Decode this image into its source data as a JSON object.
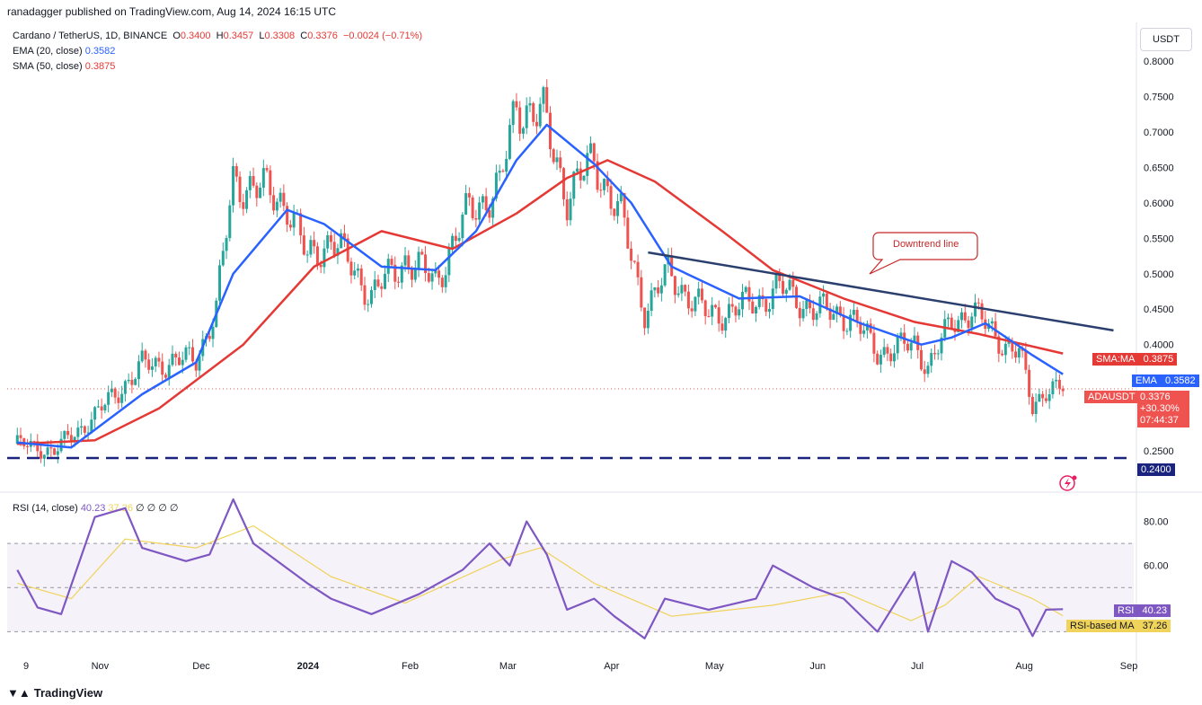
{
  "publisher_line": "ranadagger published on TradingView.com, Aug 14, 2024 16:15 UTC",
  "legend": {
    "symbol": "Cardano / TetherUS, 1D, BINANCE",
    "ohlc": {
      "O": "0.3400",
      "H": "0.3457",
      "L": "0.3308",
      "C": "0.3376",
      "change": "−0.0024 (−0.71%)"
    },
    "ema_label": "EMA (20, close)",
    "ema_value": "0.3582",
    "sma_label": "SMA (50, close)",
    "sma_value": "0.3875"
  },
  "currency": "USDT",
  "rsi_legend": {
    "label": "RSI (14, close)",
    "rsi_value": "40.23",
    "ma_value": "37.26",
    "extra": "∅ ∅ ∅ ∅"
  },
  "annotation": "Downtrend line",
  "tags": {
    "sma_label": "SMA:MA",
    "sma_value": "0.3875",
    "ema_label": "EMA",
    "ema_value": "0.3582",
    "price_label": "ADAUSDT",
    "price_value": "0.3376",
    "price_change": "+30.30%",
    "countdown": "07:44:37",
    "support_value": "0.2400",
    "rsi_label": "RSI",
    "rsi_value": "40.23",
    "rsi_ma_label": "RSI-based MA",
    "rsi_ma_value": "37.26"
  },
  "brand": "TradingView",
  "colors": {
    "up": "#26a69a",
    "down": "#ef5350",
    "ema": "#2962ff",
    "sma": "#e53935",
    "trend": "#2a3f6e",
    "support": "#1a237e",
    "rsi": "#7e57c2",
    "rsi_ma": "#f0d35a"
  },
  "chart_data": [
    {
      "type": "candlestick",
      "title": "Cardano / TetherUS, 1D, BINANCE",
      "x_ticks": [
        "9",
        "Nov",
        "Dec",
        "2024",
        "Feb",
        "Mar",
        "Apr",
        "May",
        "Jun",
        "Jul",
        "Aug",
        "Sep"
      ],
      "y_ticks": [
        "0.2500",
        "0.3000",
        "0.3500",
        "0.4000",
        "0.4500",
        "0.5000",
        "0.5500",
        "0.6000",
        "0.6500",
        "0.7000",
        "0.7500",
        "0.8000"
      ],
      "ylim": [
        0.235,
        0.81
      ],
      "close_path": [
        [
          "2023-10-09",
          0.26
        ],
        [
          "2023-10-20",
          0.25
        ],
        [
          "2023-11-01",
          0.3
        ],
        [
          "2023-11-15",
          0.37
        ],
        [
          "2023-12-01",
          0.38
        ],
        [
          "2023-12-07",
          0.45
        ],
        [
          "2023-12-12",
          0.63
        ],
        [
          "2023-12-20",
          0.62
        ],
        [
          "2023-12-28",
          0.6
        ],
        [
          "2024-01-03",
          0.52
        ],
        [
          "2024-01-10",
          0.55
        ],
        [
          "2024-01-22",
          0.47
        ],
        [
          "2024-02-01",
          0.52
        ],
        [
          "2024-02-10",
          0.49
        ],
        [
          "2024-02-20",
          0.59
        ],
        [
          "2024-02-29",
          0.62
        ],
        [
          "2024-03-05",
          0.74
        ],
        [
          "2024-03-13",
          0.72
        ],
        [
          "2024-03-20",
          0.61
        ],
        [
          "2024-03-28",
          0.66
        ],
        [
          "2024-04-05",
          0.58
        ],
        [
          "2024-04-12",
          0.45
        ],
        [
          "2024-04-19",
          0.5
        ],
        [
          "2024-05-01",
          0.44
        ],
        [
          "2024-05-15",
          0.46
        ],
        [
          "2024-05-22",
          0.48
        ],
        [
          "2024-06-01",
          0.45
        ],
        [
          "2024-06-12",
          0.44
        ],
        [
          "2024-06-20",
          0.39
        ],
        [
          "2024-07-01",
          0.4
        ],
        [
          "2024-07-05",
          0.37
        ],
        [
          "2024-07-12",
          0.43
        ],
        [
          "2024-07-18",
          0.45
        ],
        [
          "2024-07-25",
          0.41
        ],
        [
          "2024-08-01",
          0.39
        ],
        [
          "2024-08-05",
          0.31
        ],
        [
          "2024-08-09",
          0.34
        ],
        [
          "2024-08-14",
          0.3376
        ]
      ],
      "ema20_path": [
        [
          "2023-10-09",
          0.262
        ],
        [
          "2023-10-25",
          0.255
        ],
        [
          "2023-11-15",
          0.33
        ],
        [
          "2023-12-01",
          0.375
        ],
        [
          "2023-12-12",
          0.5
        ],
        [
          "2023-12-28",
          0.59
        ],
        [
          "2024-01-08",
          0.57
        ],
        [
          "2024-01-25",
          0.51
        ],
        [
          "2024-02-10",
          0.505
        ],
        [
          "2024-02-22",
          0.56
        ],
        [
          "2024-03-05",
          0.66
        ],
        [
          "2024-03-14",
          0.71
        ],
        [
          "2024-03-28",
          0.655
        ],
        [
          "2024-04-08",
          0.6
        ],
        [
          "2024-04-20",
          0.51
        ],
        [
          "2024-05-10",
          0.465
        ],
        [
          "2024-05-28",
          0.468
        ],
        [
          "2024-06-15",
          0.43
        ],
        [
          "2024-07-03",
          0.4
        ],
        [
          "2024-07-12",
          0.41
        ],
        [
          "2024-07-22",
          0.43
        ],
        [
          "2024-08-05",
          0.385
        ],
        [
          "2024-08-14",
          0.3582
        ]
      ],
      "sma50_path": [
        [
          "2023-10-09",
          0.26
        ],
        [
          "2023-11-01",
          0.265
        ],
        [
          "2023-11-20",
          0.31
        ],
        [
          "2023-12-15",
          0.4
        ],
        [
          "2024-01-05",
          0.51
        ],
        [
          "2024-01-25",
          0.56
        ],
        [
          "2024-02-15",
          0.535
        ],
        [
          "2024-03-05",
          0.585
        ],
        [
          "2024-03-20",
          0.635
        ],
        [
          "2024-04-01",
          0.66
        ],
        [
          "2024-04-15",
          0.63
        ],
        [
          "2024-05-05",
          0.56
        ],
        [
          "2024-05-20",
          0.505
        ],
        [
          "2024-06-10",
          0.465
        ],
        [
          "2024-07-01",
          0.432
        ],
        [
          "2024-07-20",
          0.415
        ],
        [
          "2024-08-14",
          0.3875
        ]
      ],
      "trendline": [
        [
          "2024-04-13",
          0.53
        ],
        [
          "2024-08-29",
          0.42
        ]
      ],
      "support_level": 0.24,
      "last_price": 0.3376
    },
    {
      "type": "line",
      "title": "RSI (14, close)",
      "y_ticks": [
        "60.00",
        "80.00"
      ],
      "bands": [
        30,
        50,
        70
      ],
      "rsi_path": [
        [
          "2023-10-09",
          58
        ],
        [
          "2023-10-15",
          41
        ],
        [
          "2023-10-22",
          38
        ],
        [
          "2023-11-01",
          82
        ],
        [
          "2023-11-10",
          86
        ],
        [
          "2023-11-15",
          68
        ],
        [
          "2023-11-28",
          62
        ],
        [
          "2023-12-05",
          65
        ],
        [
          "2023-12-12",
          90
        ],
        [
          "2023-12-18",
          70
        ],
        [
          "2024-01-03",
          52
        ],
        [
          "2024-01-10",
          45
        ],
        [
          "2024-01-22",
          38
        ],
        [
          "2024-02-05",
          47
        ],
        [
          "2024-02-18",
          58
        ],
        [
          "2024-02-26",
          70
        ],
        [
          "2024-03-03",
          60
        ],
        [
          "2024-03-08",
          80
        ],
        [
          "2024-03-14",
          65
        ],
        [
          "2024-03-20",
          40
        ],
        [
          "2024-03-28",
          45
        ],
        [
          "2024-04-03",
          37
        ],
        [
          "2024-04-12",
          27
        ],
        [
          "2024-04-18",
          45
        ],
        [
          "2024-05-01",
          40
        ],
        [
          "2024-05-15",
          45
        ],
        [
          "2024-05-20",
          60
        ],
        [
          "2024-06-01",
          50
        ],
        [
          "2024-06-10",
          45
        ],
        [
          "2024-06-20",
          30
        ],
        [
          "2024-07-01",
          57
        ],
        [
          "2024-07-05",
          30
        ],
        [
          "2024-07-12",
          62
        ],
        [
          "2024-07-18",
          57
        ],
        [
          "2024-07-25",
          45
        ],
        [
          "2024-08-01",
          40
        ],
        [
          "2024-08-05",
          28
        ],
        [
          "2024-08-09",
          40
        ],
        [
          "2024-08-14",
          40.23
        ]
      ],
      "rsi_ma_path": [
        [
          "2023-10-09",
          52
        ],
        [
          "2023-10-25",
          45
        ],
        [
          "2023-11-10",
          72
        ],
        [
          "2023-12-01",
          68
        ],
        [
          "2023-12-18",
          78
        ],
        [
          "2024-01-10",
          55
        ],
        [
          "2024-02-01",
          43
        ],
        [
          "2024-03-01",
          63
        ],
        [
          "2024-03-12",
          68
        ],
        [
          "2024-03-28",
          52
        ],
        [
          "2024-04-20",
          37
        ],
        [
          "2024-05-20",
          42
        ],
        [
          "2024-06-10",
          48
        ],
        [
          "2024-06-30",
          35
        ],
        [
          "2024-07-10",
          42
        ],
        [
          "2024-07-20",
          55
        ],
        [
          "2024-08-05",
          45
        ],
        [
          "2024-08-14",
          37.26
        ]
      ]
    }
  ]
}
